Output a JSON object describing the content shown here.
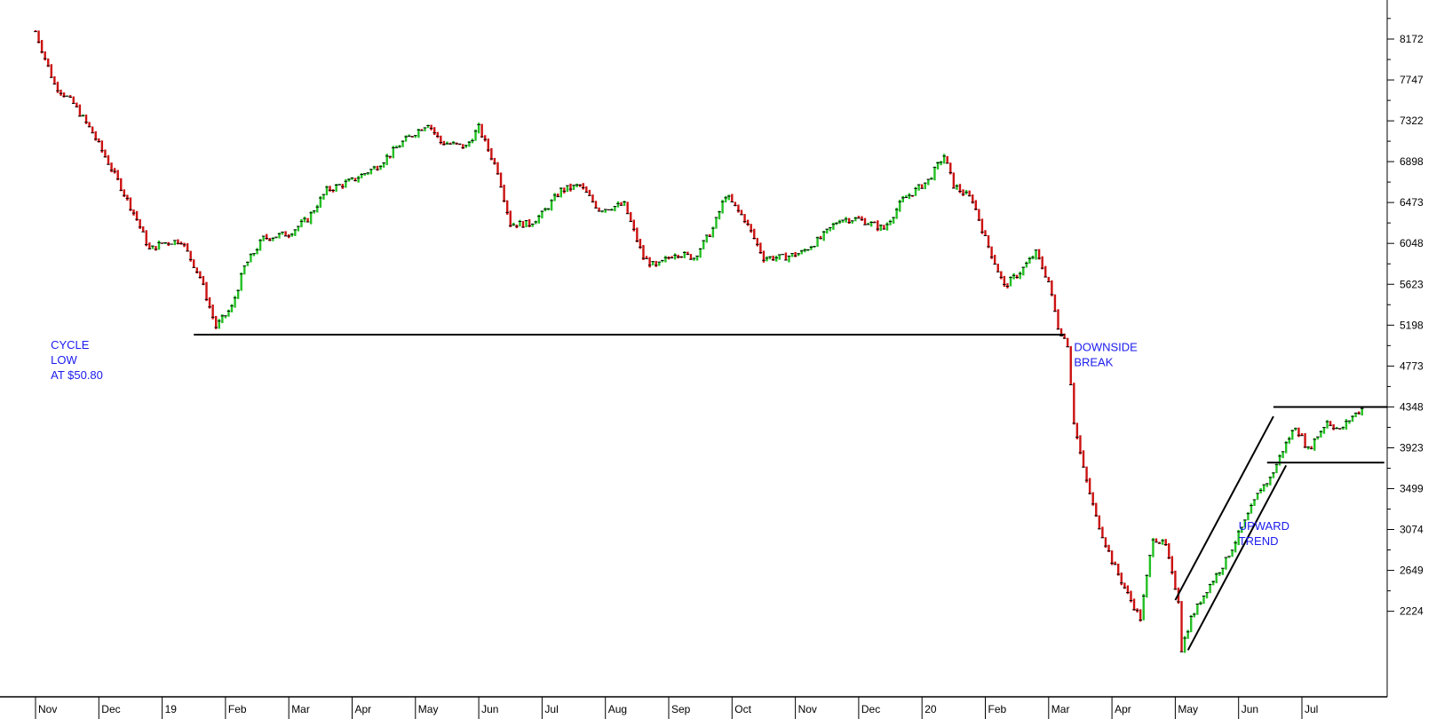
{
  "chart_data": {
    "type": "bar",
    "subtype": "daily price bars (up green, down red)",
    "title": "",
    "xlabel": "",
    "ylabel": "",
    "ylim": [
      1780,
      8600
    ],
    "y_ticks": [
      2224,
      2649,
      3074,
      3499,
      3923,
      4348,
      4773,
      5198,
      5623,
      6048,
      6473,
      6898,
      7322,
      7747,
      8172
    ],
    "x_labels": [
      "Nov",
      "Dec",
      "19",
      "Feb",
      "Mar",
      "Apr",
      "May",
      "Jun",
      "Jul",
      "Aug",
      "Sep",
      "Oct",
      "Nov",
      "Dec",
      "20",
      "Feb",
      "Mar",
      "Apr",
      "May",
      "Jun",
      "Jul"
    ],
    "colors": {
      "up": "#22c022",
      "down": "#cc1111",
      "annotation": "#1a1aee",
      "axis": "#000000"
    },
    "series": [
      {
        "name": "",
        "keypoints": [
          {
            "m": 0,
            "v": 8250
          },
          {
            "m": 0.3,
            "v": 7700
          },
          {
            "m": 0.6,
            "v": 7500
          },
          {
            "m": 0.9,
            "v": 7200
          },
          {
            "m": 1.3,
            "v": 6700
          },
          {
            "m": 1.6,
            "v": 6300
          },
          {
            "m": 1.8,
            "v": 5980
          },
          {
            "m": 2.0,
            "v": 6050
          },
          {
            "m": 2.3,
            "v": 6080
          },
          {
            "m": 2.6,
            "v": 5700
          },
          {
            "m": 2.85,
            "v": 5180
          },
          {
            "m": 3.1,
            "v": 5380
          },
          {
            "m": 3.3,
            "v": 5800
          },
          {
            "m": 3.6,
            "v": 6100
          },
          {
            "m": 4.0,
            "v": 6150
          },
          {
            "m": 4.3,
            "v": 6300
          },
          {
            "m": 4.6,
            "v": 6600
          },
          {
            "m": 5.0,
            "v": 6700
          },
          {
            "m": 5.4,
            "v": 6850
          },
          {
            "m": 5.8,
            "v": 7100
          },
          {
            "m": 6.2,
            "v": 7300
          },
          {
            "m": 6.4,
            "v": 7100
          },
          {
            "m": 6.8,
            "v": 7050
          },
          {
            "m": 7.0,
            "v": 7250
          },
          {
            "m": 7.3,
            "v": 6800
          },
          {
            "m": 7.5,
            "v": 6250
          },
          {
            "m": 7.8,
            "v": 6250
          },
          {
            "m": 8.0,
            "v": 6350
          },
          {
            "m": 8.3,
            "v": 6600
          },
          {
            "m": 8.6,
            "v": 6650
          },
          {
            "m": 8.9,
            "v": 6400
          },
          {
            "m": 9.3,
            "v": 6450
          },
          {
            "m": 9.6,
            "v": 5900
          },
          {
            "m": 9.8,
            "v": 5800
          },
          {
            "m": 10.1,
            "v": 5950
          },
          {
            "m": 10.4,
            "v": 5900
          },
          {
            "m": 10.7,
            "v": 6200
          },
          {
            "m": 10.9,
            "v": 6550
          },
          {
            "m": 11.2,
            "v": 6300
          },
          {
            "m": 11.5,
            "v": 5900
          },
          {
            "m": 11.8,
            "v": 5900
          },
          {
            "m": 12.1,
            "v": 5950
          },
          {
            "m": 12.4,
            "v": 6100
          },
          {
            "m": 12.7,
            "v": 6300
          },
          {
            "m": 13.0,
            "v": 6300
          },
          {
            "m": 13.4,
            "v": 6200
          },
          {
            "m": 13.7,
            "v": 6500
          },
          {
            "m": 14.1,
            "v": 6700
          },
          {
            "m": 14.35,
            "v": 6960
          },
          {
            "m": 14.5,
            "v": 6650
          },
          {
            "m": 14.8,
            "v": 6500
          },
          {
            "m": 15.0,
            "v": 6100
          },
          {
            "m": 15.3,
            "v": 5600
          },
          {
            "m": 15.55,
            "v": 5750
          },
          {
            "m": 15.8,
            "v": 5950
          },
          {
            "m": 16.0,
            "v": 5650
          },
          {
            "m": 16.15,
            "v": 5180
          },
          {
            "m": 16.3,
            "v": 5000
          },
          {
            "m": 16.4,
            "v": 4200
          },
          {
            "m": 16.55,
            "v": 3700
          },
          {
            "m": 16.75,
            "v": 3200
          },
          {
            "m": 17.0,
            "v": 2750
          },
          {
            "m": 17.25,
            "v": 2400
          },
          {
            "m": 17.45,
            "v": 2150
          },
          {
            "m": 17.65,
            "v": 3000
          },
          {
            "m": 17.85,
            "v": 2900
          },
          {
            "m": 17.95,
            "v": 2600
          },
          {
            "m": 18.05,
            "v": 2350
          },
          {
            "m": 18.1,
            "v": 1830
          },
          {
            "m": 18.25,
            "v": 2150
          },
          {
            "m": 18.5,
            "v": 2450
          },
          {
            "m": 18.8,
            "v": 2750
          },
          {
            "m": 19.1,
            "v": 3150
          },
          {
            "m": 19.35,
            "v": 3500
          },
          {
            "m": 19.5,
            "v": 3600
          },
          {
            "m": 19.7,
            "v": 3900
          },
          {
            "m": 19.9,
            "v": 4150
          },
          {
            "m": 20.1,
            "v": 3900
          },
          {
            "m": 20.4,
            "v": 4200
          },
          {
            "m": 20.6,
            "v": 4100
          },
          {
            "m": 20.8,
            "v": 4250
          },
          {
            "m": 20.95,
            "v": 4330
          }
        ]
      }
    ],
    "annotations": [
      {
        "lines": [
          "CYCLE",
          "LOW",
          "AT $50.80"
        ]
      },
      {
        "lines": [
          "DOWNSIDE",
          "BREAK"
        ]
      },
      {
        "lines": [
          "UPWARD",
          "TREND"
        ]
      }
    ],
    "reference_lines": [
      {
        "kind": "support",
        "value": 5100,
        "from_month": 2.5,
        "to_month": 16.25
      },
      {
        "kind": "resistance",
        "value": 4348,
        "from_month": 19.55,
        "to_month": 21.35
      },
      {
        "kind": "support",
        "value": 3770,
        "from_month": 19.45,
        "to_month": 21.3
      }
    ],
    "trend_channel": [
      {
        "from": {
          "m": 18.0,
          "v": 2340
        },
        "to": {
          "m": 19.55,
          "v": 4250
        }
      },
      {
        "from": {
          "m": 18.2,
          "v": 1820
        },
        "to": {
          "m": 19.75,
          "v": 3740
        }
      }
    ]
  }
}
